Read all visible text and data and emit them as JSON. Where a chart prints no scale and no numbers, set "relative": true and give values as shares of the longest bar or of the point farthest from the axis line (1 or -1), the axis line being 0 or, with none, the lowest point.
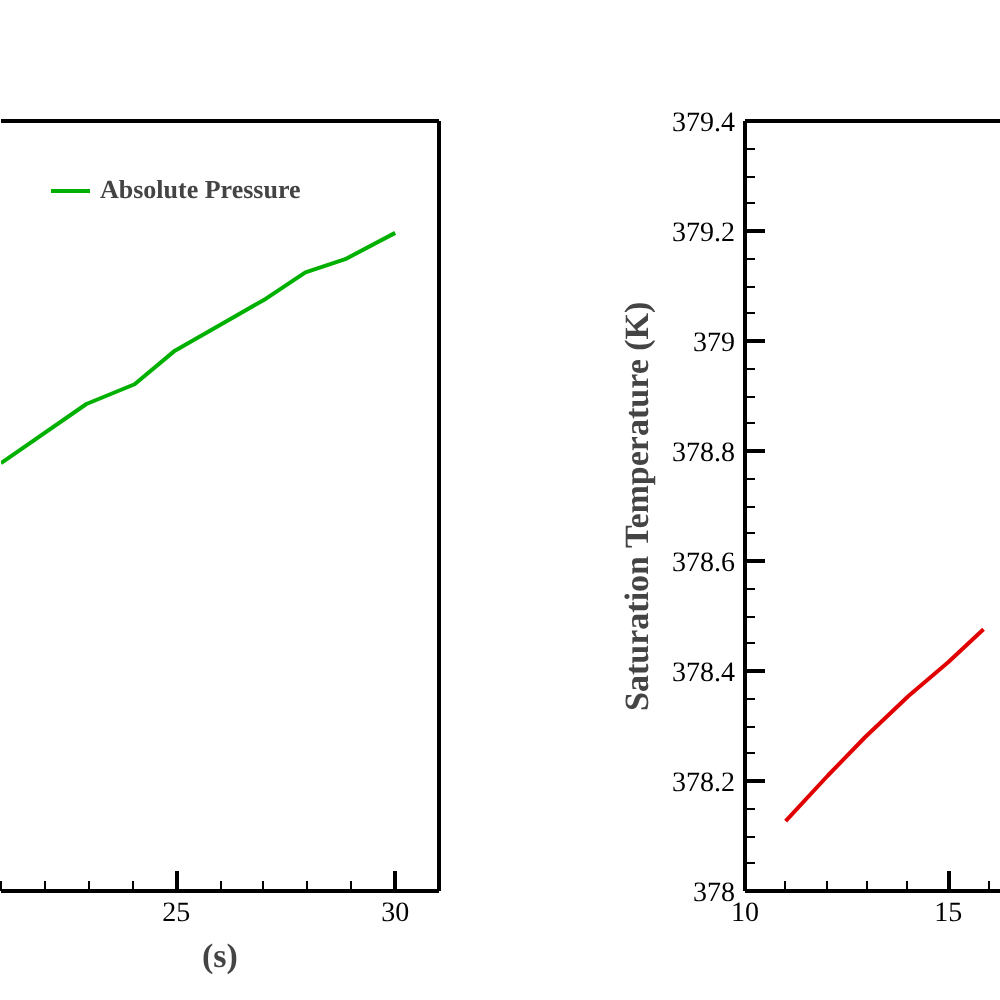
{
  "chart_data": [
    {
      "type": "line",
      "relative": true,
      "xlabel": "(s)",
      "xlim": [
        21,
        31
      ],
      "xticks": [
        25,
        30
      ],
      "legend": "top left",
      "tick_labels": "x",
      "series": [
        {
          "name": "Absolute Pressure",
          "color": "#00b000",
          "x": [
            21.0,
            22.95,
            24.05,
            24.95,
            26.0,
            27.05,
            27.95,
            28.86,
            30.0
          ],
          "values": [
            0.65,
            0.74,
            0.77,
            0.82,
            0.86,
            0.9,
            0.94,
            0.96,
            1.0
          ]
        }
      ]
    },
    {
      "type": "line",
      "ylabel": "Saturation Temperature (K)",
      "xlim": [
        10,
        16.3
      ],
      "xticks": [
        10,
        15
      ],
      "ylim": [
        378,
        379.4
      ],
      "yticks": [
        378,
        378.2,
        378.4,
        378.6,
        378.8,
        379,
        379.2,
        379.4
      ],
      "series": [
        {
          "color": "#e00000",
          "x": [
            11.0,
            12.04,
            12.96,
            14.03,
            15.0,
            15.87
          ],
          "values": [
            378.127,
            378.21,
            378.28,
            378.355,
            378.416,
            378.476
          ]
        }
      ]
    }
  ]
}
